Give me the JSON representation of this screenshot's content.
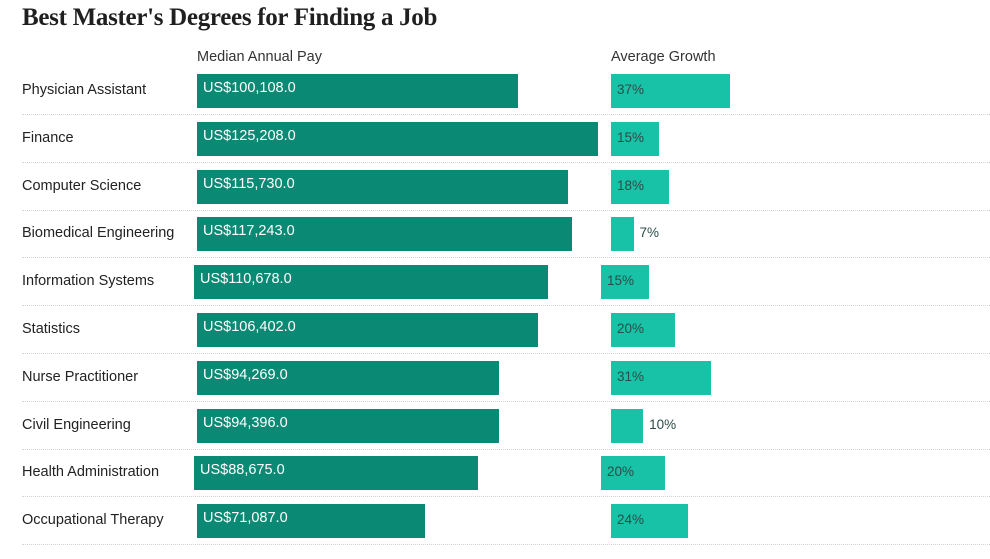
{
  "chart_data": {
    "type": "bar",
    "title": "Best Master's Degrees for Finding a Job",
    "columns": [
      "Median Annual Pay",
      "Average Growth"
    ],
    "categories": [
      "Physician Assistant",
      "Finance",
      "Computer Science",
      "Biomedical Engineering",
      "Information Systems",
      "Statistics",
      "Nurse Practitioner",
      "Civil Engineering",
      "Health Administration",
      "Occupational Therapy"
    ],
    "series": [
      {
        "name": "Median Annual Pay",
        "values": [
          100108,
          125208,
          115730,
          117243,
          110678,
          106402,
          94269,
          94396,
          88675,
          71087
        ],
        "labels": [
          "US$100,108.0",
          "US$125,208.0",
          "US$115,730.0",
          "US$117,243.0",
          "US$110,678.0",
          "US$106,402.0",
          "US$94,269.0",
          "US$94,396.0",
          "US$88,675.0",
          "US$71,087.0"
        ]
      },
      {
        "name": "Average Growth",
        "values": [
          37,
          15,
          18,
          7,
          15,
          20,
          31,
          10,
          20,
          24
        ],
        "labels": [
          "37%",
          "15%",
          "18%",
          "7%",
          "15%",
          "20%",
          "31%",
          "10%",
          "20%",
          "24%"
        ]
      }
    ],
    "colors": {
      "pay": "#0a8a74",
      "growth": "#17c2a6"
    }
  }
}
